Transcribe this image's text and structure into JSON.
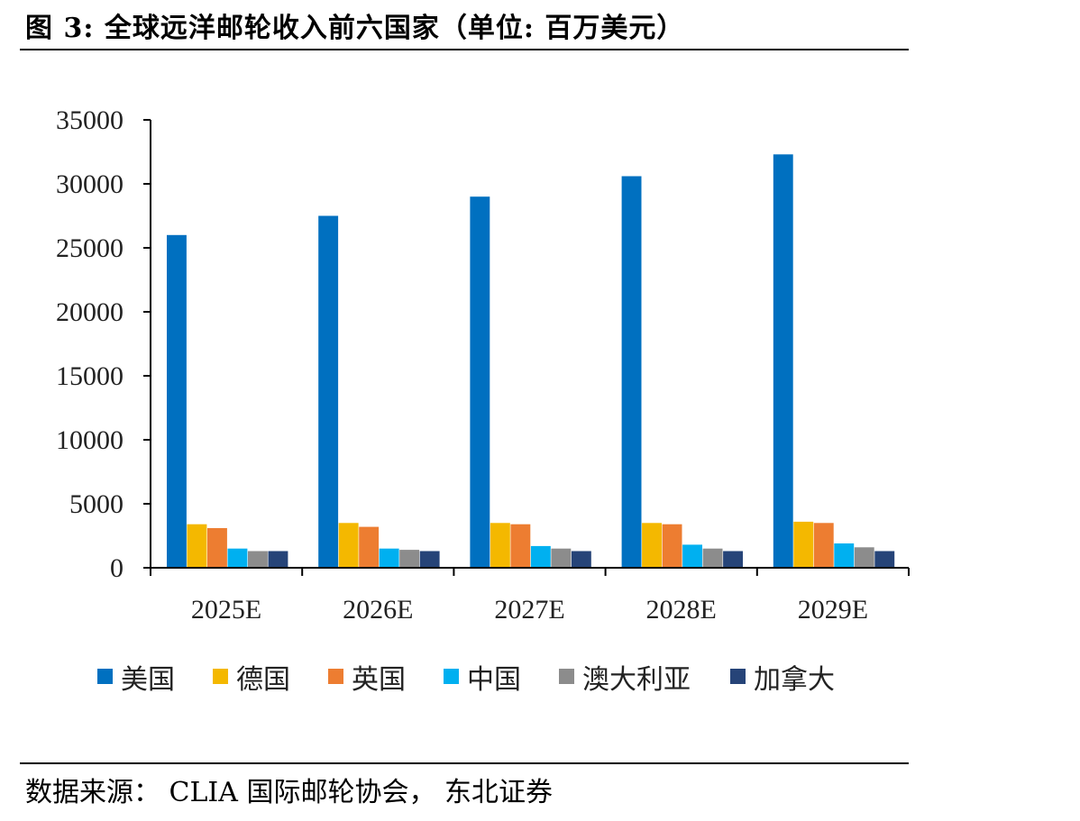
{
  "figure": {
    "title": "图 3: 全球远洋邮轮收入前六国家（单位: 百万美元）",
    "source": "数据来源： CLIA 国际邮轮协会， 东北证券"
  },
  "chart_data": {
    "type": "bar",
    "title": "图 3: 全球远洋邮轮收入前六国家（单位: 百万美元）",
    "xlabel": "",
    "ylabel": "",
    "categories": [
      "2025E",
      "2026E",
      "2027E",
      "2028E",
      "2029E"
    ],
    "ylim": [
      0,
      35000
    ],
    "yticks": [
      "0",
      "5000",
      "10000",
      "15000",
      "20000",
      "25000",
      "30000",
      "35000"
    ],
    "grid": false,
    "legend_position": "bottom",
    "series": [
      {
        "name": "美国",
        "color": "#0070C0",
        "values": [
          26000,
          27500,
          29000,
          30600,
          32300
        ]
      },
      {
        "name": "德国",
        "color": "#F4B800",
        "values": [
          3400,
          3500,
          3500,
          3500,
          3600
        ]
      },
      {
        "name": "英国",
        "color": "#ED7D31",
        "values": [
          3100,
          3200,
          3400,
          3400,
          3500
        ]
      },
      {
        "name": "中国",
        "color": "#00B0F0",
        "values": [
          1500,
          1500,
          1700,
          1800,
          1900
        ]
      },
      {
        "name": "澳大利亚",
        "color": "#8C8C8C",
        "values": [
          1300,
          1400,
          1500,
          1500,
          1600
        ]
      },
      {
        "name": "加拿大",
        "color": "#264478",
        "values": [
          1300,
          1300,
          1300,
          1300,
          1300
        ]
      }
    ]
  }
}
